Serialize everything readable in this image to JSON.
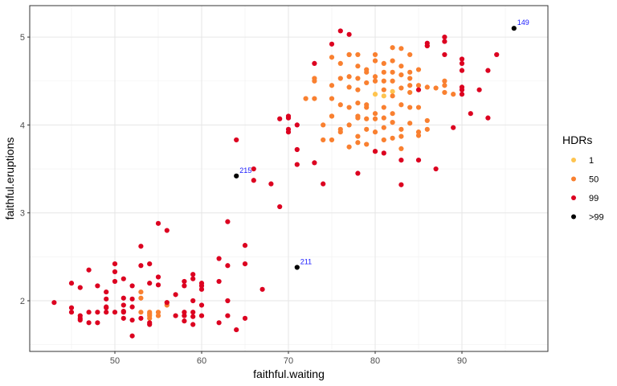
{
  "chart_data": {
    "type": "scatter",
    "title": "",
    "xlabel": "faithful.waiting",
    "ylabel": "faithful.eruptions",
    "xlim": [
      40.7,
      100.4
    ],
    "ylim": [
      1.45,
      5.38
    ],
    "xticks": [
      50,
      60,
      70,
      80,
      90
    ],
    "yticks": [
      2,
      3,
      4,
      5
    ],
    "grid": true,
    "legend": {
      "title": "HDRs",
      "position": "right",
      "entries": [
        {
          "label": "1",
          "color": "#FEC44F"
        },
        {
          "label": "50",
          "color": "#F98030"
        },
        {
          "label": "99",
          "color": "#DC0020"
        },
        {
          "label": ">99",
          "color": "#000000"
        }
      ]
    },
    "annotations": [
      {
        "label": "149",
        "x": 96,
        "y": 5.1
      },
      {
        "label": "215",
        "x": 64,
        "y": 3.42
      },
      {
        "label": "211",
        "x": 71,
        "y": 2.38
      }
    ],
    "series": [
      {
        "name": "1",
        "points": [
          [
            80,
            4.35
          ],
          [
            81,
            4.33
          ],
          [
            82,
            4.38
          ]
        ]
      },
      {
        "name": "50",
        "points": [
          [
            53,
            2.1
          ],
          [
            53,
            2.03
          ],
          [
            53,
            1.87
          ],
          [
            54,
            1.87
          ],
          [
            54,
            1.83
          ],
          [
            54,
            1.8
          ],
          [
            54,
            1.85
          ],
          [
            55,
            1.87
          ],
          [
            55,
            1.83
          ],
          [
            56,
            1.98
          ],
          [
            56,
            1.95
          ],
          [
            72,
            4.3
          ],
          [
            73,
            4.3
          ],
          [
            73,
            4.53
          ],
          [
            73,
            4.5
          ],
          [
            74,
            4.0
          ],
          [
            74,
            3.83
          ],
          [
            75,
            4.45
          ],
          [
            75,
            3.83
          ],
          [
            75,
            4.3
          ],
          [
            75,
            4.1
          ],
          [
            75,
            4.77
          ],
          [
            75,
            4.1
          ],
          [
            76,
            4.7
          ],
          [
            76,
            4.53
          ],
          [
            76,
            4.23
          ],
          [
            76,
            3.92
          ],
          [
            76,
            3.95
          ],
          [
            77,
            4.8
          ],
          [
            77,
            4.2
          ],
          [
            77,
            4.0
          ],
          [
            77,
            3.75
          ],
          [
            77,
            4.55
          ],
          [
            77,
            4.43
          ],
          [
            77,
            4.8
          ],
          [
            78,
            4.8
          ],
          [
            78,
            4.53
          ],
          [
            78,
            4.25
          ],
          [
            78,
            4.08
          ],
          [
            78,
            3.87
          ],
          [
            78,
            3.8
          ],
          [
            78,
            4.4
          ],
          [
            78,
            4.67
          ],
          [
            78,
            4.1
          ],
          [
            79,
            4.23
          ],
          [
            79,
            4.48
          ],
          [
            79,
            4.6
          ],
          [
            79,
            4.2
          ],
          [
            79,
            3.95
          ],
          [
            79,
            3.78
          ],
          [
            79,
            4.07
          ],
          [
            79,
            4.63
          ],
          [
            80,
            4.55
          ],
          [
            80,
            4.8
          ],
          [
            80,
            4.07
          ],
          [
            80,
            3.92
          ],
          [
            80,
            4.13
          ],
          [
            80,
            4.73
          ],
          [
            80,
            4.5
          ],
          [
            81,
            4.5
          ],
          [
            81,
            4.2
          ],
          [
            81,
            4.7
          ],
          [
            81,
            4.08
          ],
          [
            81,
            3.97
          ],
          [
            81,
            4.6
          ],
          [
            81,
            4.4
          ],
          [
            82,
            4.88
          ],
          [
            82,
            4.6
          ],
          [
            82,
            4.33
          ],
          [
            82,
            4.03
          ],
          [
            82,
            4.13
          ],
          [
            82,
            3.85
          ],
          [
            82,
            4.5
          ],
          [
            82,
            4.73
          ],
          [
            83,
            4.87
          ],
          [
            83,
            4.57
          ],
          [
            83,
            4.23
          ],
          [
            83,
            3.95
          ],
          [
            83,
            3.87
          ],
          [
            83,
            4.42
          ],
          [
            83,
            4.67
          ],
          [
            84,
            4.53
          ],
          [
            84,
            4.8
          ],
          [
            84,
            4.2
          ],
          [
            84,
            4.02
          ],
          [
            84,
            4.37
          ],
          [
            84,
            4.6
          ],
          [
            84,
            4.45
          ],
          [
            85,
            4.63
          ],
          [
            85,
            4.45
          ],
          [
            85,
            4.2
          ],
          [
            85,
            3.88
          ],
          [
            85,
            3.92
          ],
          [
            86,
            4.9
          ],
          [
            86,
            4.43
          ],
          [
            86,
            4.05
          ],
          [
            87,
            4.42
          ],
          [
            88,
            4.45
          ],
          [
            88,
            4.37
          ],
          [
            88,
            4.5
          ],
          [
            89,
            4.35
          ],
          [
            83,
            3.73
          ],
          [
            86,
            3.95
          ],
          [
            81,
            3.83
          ],
          [
            80,
            3.7
          ]
        ]
      },
      {
        "name": "99",
        "points": [
          [
            43,
            1.98
          ],
          [
            45,
            2.2
          ],
          [
            45,
            1.92
          ],
          [
            45,
            1.87
          ],
          [
            46,
            2.15
          ],
          [
            46,
            1.83
          ],
          [
            46,
            1.8
          ],
          [
            46,
            1.78
          ],
          [
            47,
            2.35
          ],
          [
            47,
            1.87
          ],
          [
            47,
            1.75
          ],
          [
            48,
            2.17
          ],
          [
            48,
            1.87
          ],
          [
            48,
            1.75
          ],
          [
            49,
            2.1
          ],
          [
            49,
            2.02
          ],
          [
            49,
            1.93
          ],
          [
            49,
            1.92
          ],
          [
            49,
            1.87
          ],
          [
            50,
            2.42
          ],
          [
            50,
            2.33
          ],
          [
            50,
            2.22
          ],
          [
            50,
            1.87
          ],
          [
            51,
            2.25
          ],
          [
            51,
            2.03
          ],
          [
            51,
            1.95
          ],
          [
            51,
            1.88
          ],
          [
            51,
            1.87
          ],
          [
            51,
            1.8
          ],
          [
            52,
            2.17
          ],
          [
            52,
            2.02
          ],
          [
            52,
            1.93
          ],
          [
            52,
            1.78
          ],
          [
            52,
            1.6
          ],
          [
            53,
            2.62
          ],
          [
            53,
            2.4
          ],
          [
            53,
            1.8
          ],
          [
            54,
            2.42
          ],
          [
            54,
            2.2
          ],
          [
            54,
            1.75
          ],
          [
            54,
            1.73
          ],
          [
            55,
            2.88
          ],
          [
            55,
            2.27
          ],
          [
            55,
            2.18
          ],
          [
            56,
            2.8
          ],
          [
            56,
            1.98
          ],
          [
            57,
            2.07
          ],
          [
            57,
            1.83
          ],
          [
            58,
            2.22
          ],
          [
            58,
            2.17
          ],
          [
            58,
            1.87
          ],
          [
            58,
            1.83
          ],
          [
            58,
            1.77
          ],
          [
            59,
            2.3
          ],
          [
            59,
            2.25
          ],
          [
            59,
            2.0
          ],
          [
            59,
            1.87
          ],
          [
            59,
            1.82
          ],
          [
            59,
            1.73
          ],
          [
            60,
            2.2
          ],
          [
            60,
            2.17
          ],
          [
            60,
            2.13
          ],
          [
            60,
            1.95
          ],
          [
            60,
            1.83
          ],
          [
            62,
            2.48
          ],
          [
            62,
            2.22
          ],
          [
            62,
            1.75
          ],
          [
            63,
            2.9
          ],
          [
            63,
            2.4
          ],
          [
            63,
            2.0
          ],
          [
            63,
            1.83
          ],
          [
            64,
            1.67
          ],
          [
            65,
            2.63
          ],
          [
            65,
            2.42
          ],
          [
            65,
            1.8
          ],
          [
            67,
            2.13
          ],
          [
            64,
            3.83
          ],
          [
            66,
            3.5
          ],
          [
            66,
            3.37
          ],
          [
            68,
            3.33
          ],
          [
            69,
            4.07
          ],
          [
            69,
            3.07
          ],
          [
            70,
            4.1
          ],
          [
            70,
            4.08
          ],
          [
            70,
            3.92
          ],
          [
            70,
            3.95
          ],
          [
            71,
            4.0
          ],
          [
            71,
            3.72
          ],
          [
            71,
            3.55
          ],
          [
            73,
            3.57
          ],
          [
            73,
            4.7
          ],
          [
            74,
            3.33
          ],
          [
            76,
            5.07
          ],
          [
            77,
            5.03
          ],
          [
            75,
            4.92
          ],
          [
            78,
            3.45
          ],
          [
            80,
            3.7
          ],
          [
            81,
            3.68
          ],
          [
            83,
            3.32
          ],
          [
            83,
            3.6
          ],
          [
            85,
            3.6
          ],
          [
            87,
            3.5
          ],
          [
            86,
            4.93
          ],
          [
            86,
            4.9
          ],
          [
            88,
            5.0
          ],
          [
            88,
            4.95
          ],
          [
            88,
            4.8
          ],
          [
            90,
            4.75
          ],
          [
            90,
            4.7
          ],
          [
            90,
            4.62
          ],
          [
            90,
            4.43
          ],
          [
            90,
            4.4
          ],
          [
            90,
            4.35
          ],
          [
            89,
            3.97
          ],
          [
            91,
            4.13
          ],
          [
            92,
            4.4
          ],
          [
            93,
            4.62
          ],
          [
            93,
            4.08
          ],
          [
            94,
            4.8
          ],
          [
            85,
            4.4
          ]
        ]
      },
      {
        "name": ">99",
        "points": [
          [
            96,
            5.1
          ],
          [
            64,
            3.42
          ],
          [
            71,
            2.38
          ]
        ]
      }
    ]
  }
}
